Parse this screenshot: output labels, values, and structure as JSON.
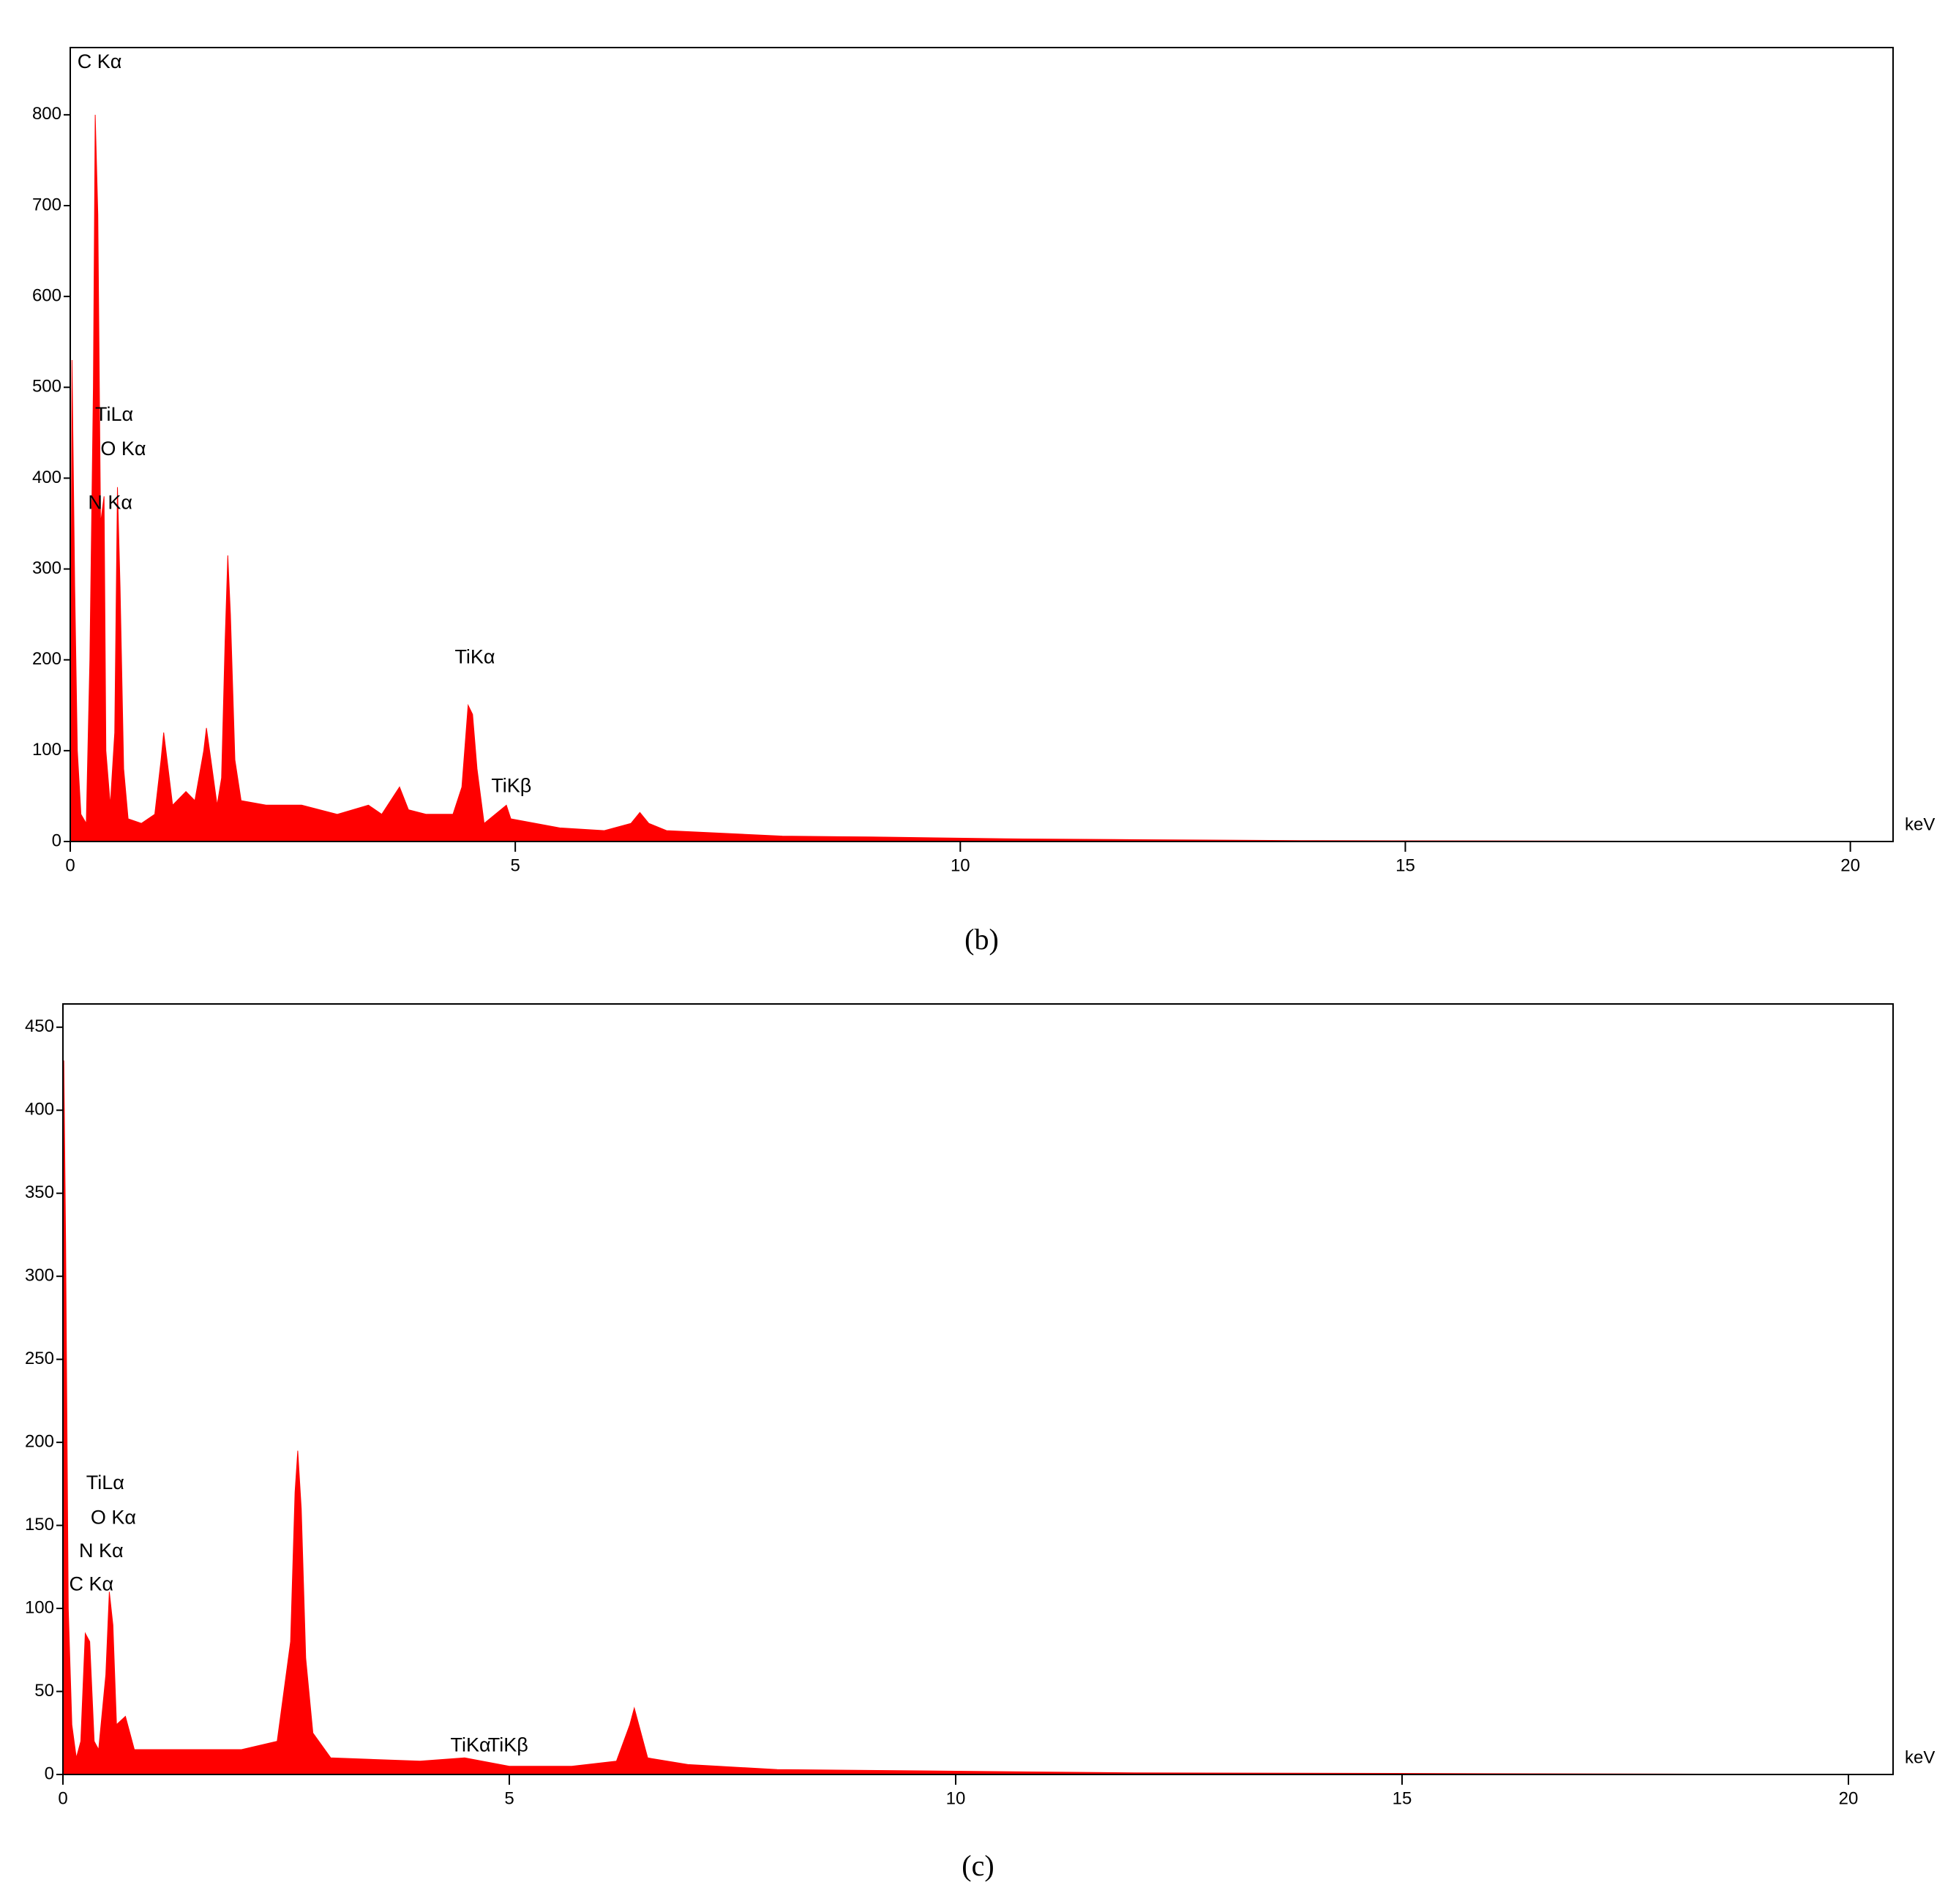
{
  "chart_data": [
    {
      "type": "area",
      "caption": "(b)",
      "x_label": "keV",
      "color": "#ff0000",
      "xlim": [
        0,
        20.48
      ],
      "ylim": [
        0,
        874
      ],
      "xticks": [
        0,
        5,
        10,
        15,
        20
      ],
      "yticks": [
        0,
        100,
        200,
        300,
        400,
        500,
        600,
        700,
        800
      ],
      "x": [
        0,
        0.02,
        0.05,
        0.08,
        0.12,
        0.18,
        0.22,
        0.26,
        0.28,
        0.31,
        0.34,
        0.38,
        0.4,
        0.45,
        0.5,
        0.53,
        0.56,
        0.6,
        0.65,
        0.8,
        0.95,
        1.02,
        1.05,
        1.1,
        1.15,
        1.3,
        1.4,
        1.5,
        1.53,
        1.58,
        1.65,
        1.7,
        1.74,
        1.77,
        1.8,
        1.85,
        1.92,
        2.2,
        2.6,
        3.0,
        3.35,
        3.5,
        3.7,
        3.8,
        4.0,
        4.3,
        4.4,
        4.47,
        4.52,
        4.57,
        4.65,
        4.9,
        4.95,
        5.5,
        6.0,
        6.3,
        6.4,
        6.5,
        6.7,
        8.0,
        9.0,
        10.5,
        12,
        14,
        20
      ],
      "values": [
        0,
        530,
        280,
        100,
        30,
        20,
        200,
        500,
        800,
        690,
        350,
        380,
        100,
        40,
        120,
        390,
        280,
        80,
        25,
        20,
        30,
        90,
        120,
        80,
        40,
        55,
        45,
        100,
        125,
        90,
        40,
        70,
        220,
        315,
        250,
        90,
        45,
        40,
        40,
        30,
        40,
        30,
        60,
        35,
        30,
        30,
        60,
        150,
        140,
        80,
        20,
        40,
        25,
        15,
        12,
        20,
        32,
        20,
        12,
        6,
        5,
        3,
        2,
        1,
        0
      ],
      "annotations": [
        {
          "text": "C Kα"
        },
        {
          "text": "TiLα"
        },
        {
          "text": "O Kα"
        },
        {
          "text": "N Kα"
        },
        {
          "text": "TiKα"
        },
        {
          "text": "TiKβ"
        }
      ]
    },
    {
      "type": "area",
      "caption": "(c)",
      "x_label": "keV",
      "color": "#ff0000",
      "xlim": [
        0,
        20.5
      ],
      "ylim": [
        0,
        464
      ],
      "xticks": [
        0,
        5,
        10,
        15,
        20
      ],
      "yticks": [
        0,
        50,
        100,
        150,
        200,
        250,
        300,
        350,
        400,
        450
      ],
      "x": [
        0,
        0.01,
        0.03,
        0.06,
        0.1,
        0.15,
        0.2,
        0.25,
        0.3,
        0.35,
        0.4,
        0.48,
        0.52,
        0.56,
        0.6,
        0.7,
        0.8,
        1.0,
        1.5,
        2.0,
        2.4,
        2.55,
        2.6,
        2.63,
        2.67,
        2.72,
        2.8,
        3.0,
        4.0,
        4.5,
        5.0,
        5.7,
        6.2,
        6.35,
        6.4,
        6.45,
        6.55,
        7.0,
        8,
        10,
        12,
        20
      ],
      "values": [
        0,
        430,
        320,
        100,
        30,
        10,
        20,
        85,
        80,
        20,
        15,
        60,
        110,
        90,
        30,
        35,
        15,
        15,
        15,
        15,
        20,
        80,
        170,
        195,
        160,
        70,
        25,
        10,
        8,
        10,
        5,
        5,
        8,
        30,
        40,
        30,
        10,
        6,
        3,
        2,
        1,
        0
      ],
      "annotations": [
        {
          "text": "TiLα"
        },
        {
          "text": "O Kα"
        },
        {
          "text": "N Kα"
        },
        {
          "text": "C Kα"
        },
        {
          "text": "TiKα"
        },
        {
          "text": "TiKβ"
        }
      ]
    }
  ]
}
